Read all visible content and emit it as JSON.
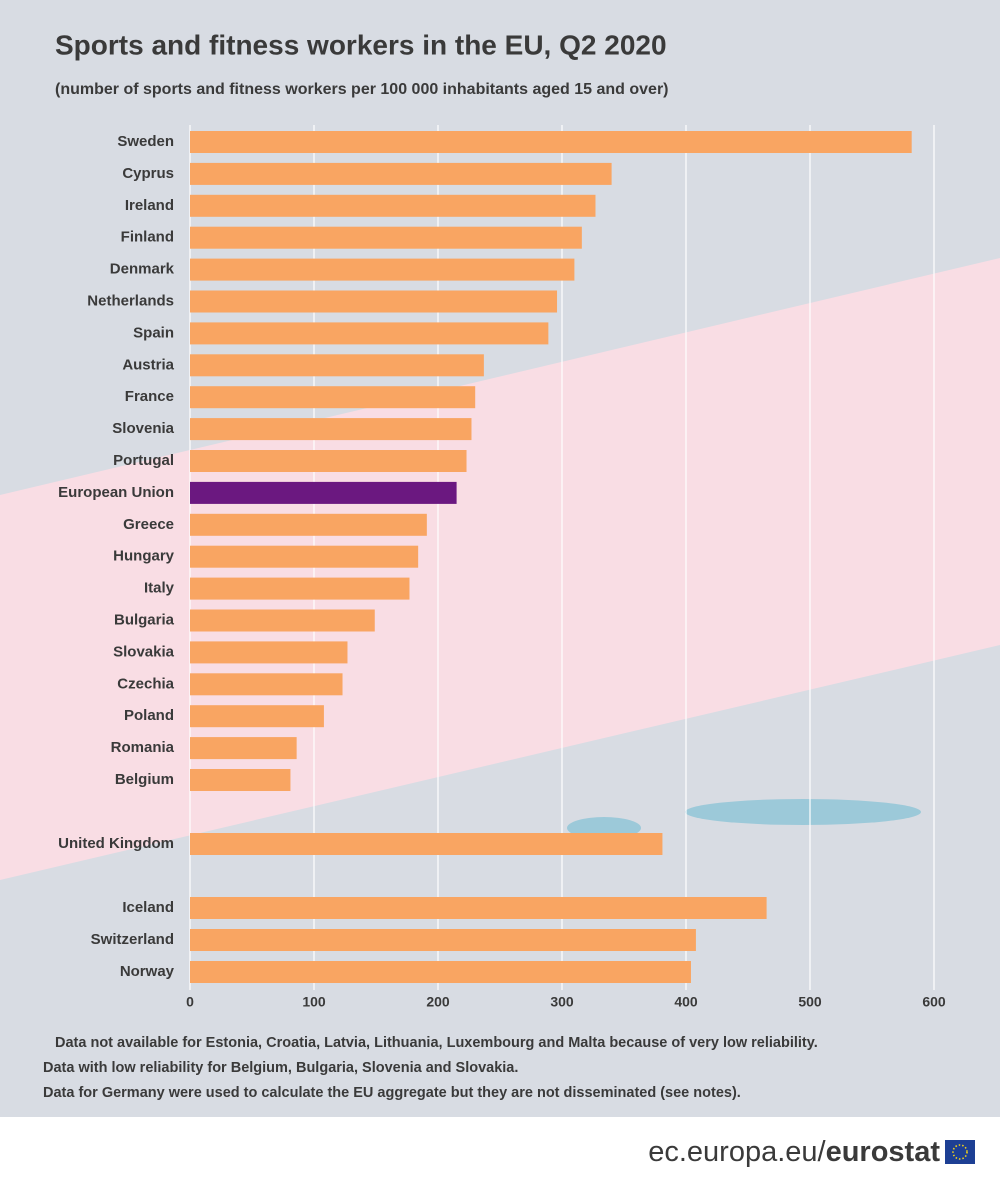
{
  "chart_data": {
    "type": "bar",
    "orientation": "horizontal",
    "title": "Sports and fitness workers in the EU, Q2 2020",
    "subtitle": "(number of sports and fitness workers per 100 000 inhabitants aged 15 and over)",
    "categories": [
      "Sweden",
      "Cyprus",
      "Ireland",
      "Finland",
      "Denmark",
      "Netherlands",
      "Spain",
      "Austria",
      "France",
      "Slovenia",
      "Portugal",
      "European Union",
      "Greece",
      "Hungary",
      "Italy",
      "Bulgaria",
      "Slovakia",
      "Czechia",
      "Poland",
      "Romania",
      "Belgium",
      "United Kingdom",
      "Iceland",
      "Switzerland",
      "Norway"
    ],
    "values": [
      582,
      340,
      327,
      316,
      310,
      296,
      289,
      237,
      230,
      227,
      223,
      215,
      191,
      184,
      177,
      149,
      127,
      123,
      108,
      86,
      81,
      381,
      465,
      408,
      404
    ],
    "colors": [
      "#f9a562",
      "#f9a562",
      "#f9a562",
      "#f9a562",
      "#f9a562",
      "#f9a562",
      "#f9a562",
      "#f9a562",
      "#f9a562",
      "#f9a562",
      "#f9a562",
      "#6b1880",
      "#f9a562",
      "#f9a562",
      "#f9a562",
      "#f9a562",
      "#f9a562",
      "#f9a562",
      "#f9a562",
      "#f9a562",
      "#f9a562",
      "#f9a562",
      "#f9a562",
      "#f9a562",
      "#f9a562"
    ],
    "xlim": [
      0,
      600
    ],
    "xticks": [
      0,
      100,
      200,
      300,
      400,
      500,
      600
    ],
    "grid": true,
    "notes": [
      "Data not available for Estonia, Croatia, Latvia, Lithuania, Luxembourg and Malta because of very low reliability.",
      "Data with low reliability for Belgium, Bulgaria, Slovenia and Slovakia.",
      "Data for Germany were used to calculate the EU aggregate but they are not disseminated (see notes)."
    ]
  },
  "footer": {
    "site": "ec.europa.eu/",
    "brand": "eurostat"
  }
}
